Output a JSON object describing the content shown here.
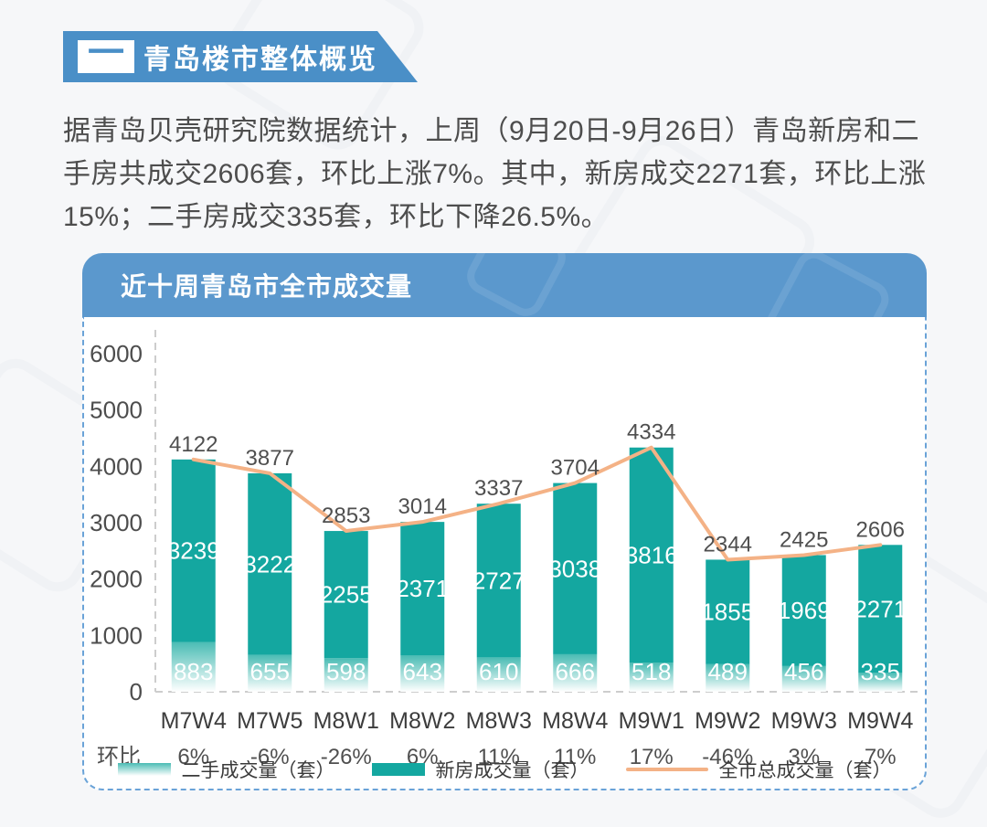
{
  "section_header": {
    "index_symbol": "一",
    "title": "青岛楼市整体概览",
    "accent_color": "#4a8fc7"
  },
  "intro": {
    "text": "据青岛贝壳研究院数据统计，上周（9月20日-9月26日）青岛新房和二手房共成交2606套，环比上涨7%。其中，新房成交2271套，环比上涨15%；二手房成交335套，环比下降26.5%。"
  },
  "chart_card": {
    "title": "近十周青岛市全市成交量",
    "header_color": "#5b98cd",
    "border_color": "#6aa3d8"
  },
  "chart_data": {
    "type": "bar",
    "subtype": "stacked-bar-with-line",
    "title": "近十周青岛市全市成交量",
    "categories": [
      "M7W4",
      "M7W5",
      "M8W1",
      "M8W2",
      "M8W3",
      "M8W4",
      "M9W1",
      "M9W2",
      "M9W3",
      "M9W4"
    ],
    "series": [
      {
        "name": "二手成交量（套）",
        "kind": "bar-gradient",
        "stack": true,
        "values": [
          883,
          655,
          598,
          643,
          610,
          666,
          518,
          489,
          456,
          335
        ],
        "gradient_top": "#4abcb4",
        "gradient_bottom": "#ffffff"
      },
      {
        "name": "新房成交量（套）",
        "kind": "bar-solid",
        "stack": true,
        "values": [
          3239,
          3222,
          2255,
          2371,
          2727,
          3038,
          3816,
          1855,
          1969,
          2271
        ],
        "color": "#14a7a0"
      },
      {
        "name": "全市总成交量（套）",
        "kind": "line",
        "values": [
          4122,
          3877,
          2853,
          3014,
          3337,
          3704,
          4334,
          2344,
          2425,
          2606
        ],
        "color": "#f4b286"
      }
    ],
    "total_labels": [
      4122,
      3877,
      2853,
      3014,
      3337,
      3704,
      4334,
      2344,
      2425,
      2606
    ],
    "huanbi_row": {
      "label": "环比",
      "values": [
        "6%",
        "-6%",
        "-26%",
        "6%",
        "11%",
        "11%",
        "17%",
        "-46%",
        "3%",
        "7%"
      ]
    },
    "ylim": [
      0,
      6000
    ],
    "yticks": [
      0,
      1000,
      2000,
      3000,
      4000,
      5000,
      6000
    ],
    "grid": false,
    "legend_position": "bottom",
    "axis_color": "#cdcdcd",
    "label_colors": {
      "total": "#4f4f4f",
      "inside": "#ffffff",
      "xtick": "#3d3d3d",
      "ytick": "#4d4d4d",
      "huanbi": "#4f4f4f"
    }
  }
}
